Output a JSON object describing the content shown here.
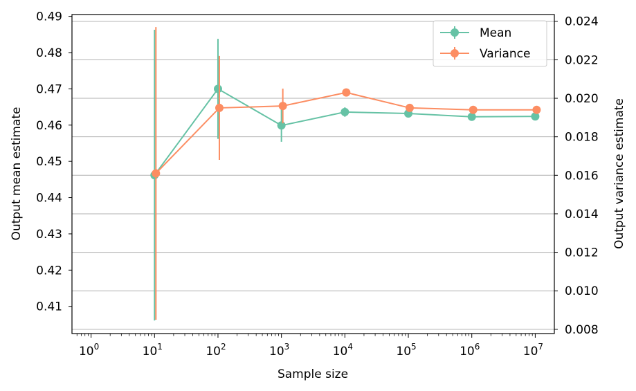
{
  "chart_data": {
    "type": "line",
    "xscale": "log",
    "x": [
      10,
      100,
      1000,
      10000,
      100000,
      1000000,
      10000000
    ],
    "xlabel": "Sample size",
    "xticks": [
      {
        "base": "10",
        "exp": "0"
      },
      {
        "base": "10",
        "exp": "1"
      },
      {
        "base": "10",
        "exp": "2"
      },
      {
        "base": "10",
        "exp": "3"
      },
      {
        "base": "10",
        "exp": "4"
      },
      {
        "base": "10",
        "exp": "5"
      },
      {
        "base": "10",
        "exp": "6"
      },
      {
        "base": "10",
        "exp": "7"
      }
    ],
    "xlim": [
      0.5,
      20000000
    ],
    "left_axis": {
      "label": "Output mean estimate",
      "ylim": [
        0.4025,
        0.4905
      ],
      "ticks": [
        "0.41",
        "0.42",
        "0.43",
        "0.44",
        "0.45",
        "0.46",
        "0.47",
        "0.48",
        "0.49"
      ]
    },
    "right_axis": {
      "label": "Output variance estimate",
      "ylim": [
        0.00778,
        0.02435
      ],
      "ticks": [
        "0.008",
        "0.010",
        "0.012",
        "0.014",
        "0.016",
        "0.018",
        "0.020",
        "0.022",
        "0.024"
      ]
    },
    "grid": "horizontal (right axis)",
    "legend_position": "upper-right",
    "series": [
      {
        "name": "Mean",
        "axis": "left",
        "color": "#66c2a5",
        "values": [
          0.4462,
          0.47,
          0.4599,
          0.4636,
          0.4632,
          0.4623,
          0.4624
        ],
        "errors": [
          0.0401,
          0.0138,
          0.0045,
          0.0013,
          0.0005,
          0.0003,
          0.0001
        ]
      },
      {
        "name": "Variance",
        "axis": "right",
        "color": "#fc8d62",
        "values": [
          0.0161,
          0.0195,
          0.0196,
          0.0203,
          0.0195,
          0.0194,
          0.0194
        ],
        "errors": [
          0.0076,
          0.0027,
          0.0009,
          0.0002,
          0.0001,
          5e-05,
          2e-05
        ]
      }
    ]
  }
}
